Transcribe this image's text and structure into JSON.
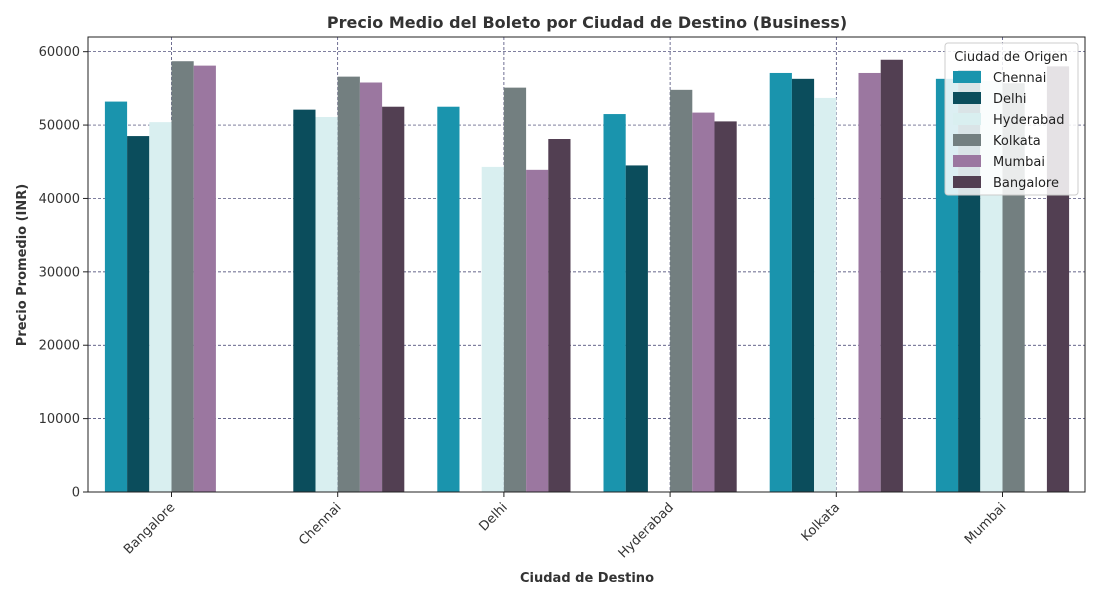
{
  "chart_data": {
    "type": "bar",
    "title": "Precio Medio del Boleto por Ciudad de Destino (Business)",
    "xlabel": "Ciudad de Destino",
    "ylabel": "Precio Promedio (INR)",
    "ylim": [
      0,
      62000
    ],
    "yticks": [
      0,
      10000,
      20000,
      30000,
      40000,
      50000,
      60000
    ],
    "grid": true,
    "legend": {
      "title": "Ciudad de Origen",
      "placement": "top-right"
    },
    "categories": [
      "Bangalore",
      "Chennai",
      "Delhi",
      "Hyderabad",
      "Kolkata",
      "Mumbai"
    ],
    "series": [
      {
        "name": "Chennai",
        "color": "#1a94ad",
        "values": [
          53200,
          null,
          52500,
          51500,
          57100,
          56300
        ]
      },
      {
        "name": "Delhi",
        "color": "#0b4d5c",
        "values": [
          48500,
          52100,
          null,
          44500,
          56300,
          57500
        ]
      },
      {
        "name": "Hyderabad",
        "color": "#d9eff0",
        "values": [
          50400,
          51100,
          44300,
          null,
          53700,
          56000
        ]
      },
      {
        "name": "Kolkata",
        "color": "#737f80",
        "values": [
          58700,
          56600,
          55100,
          54800,
          null,
          55700
        ]
      },
      {
        "name": "Mumbai",
        "color": "#9b77a0",
        "values": [
          58100,
          55800,
          43900,
          51700,
          57100,
          null
        ]
      },
      {
        "name": "Bangalore",
        "color": "#523f52",
        "values": [
          null,
          52500,
          48100,
          50500,
          58900,
          58000
        ]
      }
    ]
  }
}
